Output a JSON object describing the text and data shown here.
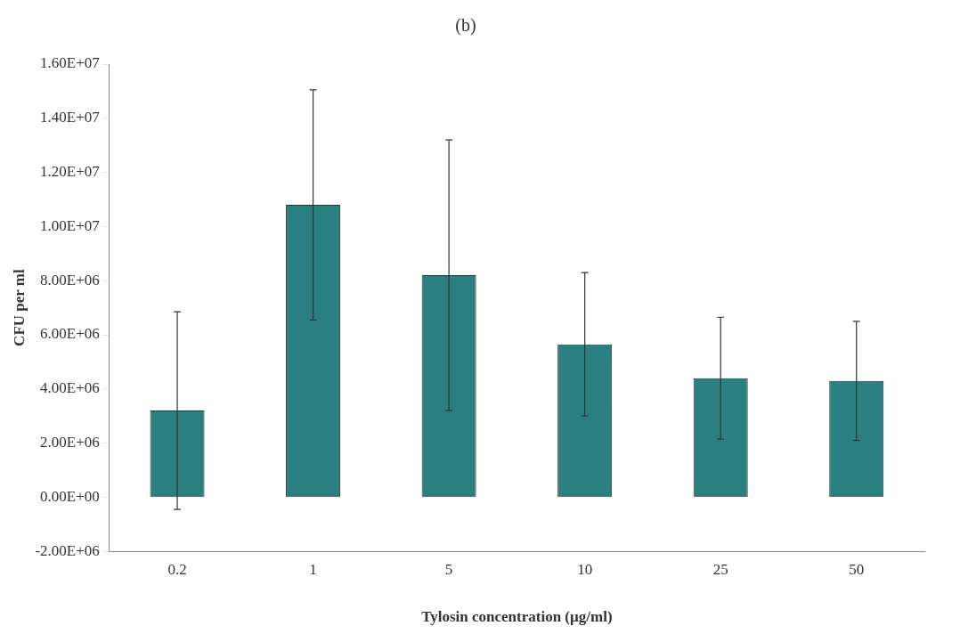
{
  "chart_data": {
    "type": "bar",
    "title": "(b)",
    "xlabel": "Tylosin concentration (µg/ml)",
    "ylabel": "CFU per ml",
    "categories": [
      "0.2",
      "1",
      "5",
      "10",
      "25",
      "50"
    ],
    "values": [
      3200000.0,
      10800000.0,
      8200000.0,
      5650000.0,
      4400000.0,
      4300000.0
    ],
    "errors": [
      3650000.0,
      4250000.0,
      5000000.0,
      2650000.0,
      2250000.0,
      2200000.0
    ],
    "color": "#2a7f80",
    "ylim": [
      -2000000.0,
      16000000.0
    ],
    "yticks": [
      {
        "value": -2000000.0,
        "label": "-2.00E+06"
      },
      {
        "value": 0,
        "label": "0.00E+00"
      },
      {
        "value": 2000000.0,
        "label": "2.00E+06"
      },
      {
        "value": 4000000.0,
        "label": "4.00E+06"
      },
      {
        "value": 6000000.0,
        "label": "6.00E+06"
      },
      {
        "value": 8000000.0,
        "label": "8.00E+06"
      },
      {
        "value": 10000000.0,
        "label": "1.00E+07"
      },
      {
        "value": 12000000.0,
        "label": "1.20E+07"
      },
      {
        "value": 14000000.0,
        "label": "1.40E+07"
      },
      {
        "value": 16000000.0,
        "label": "1.60E+07"
      }
    ],
    "grid": false,
    "legend": false
  }
}
